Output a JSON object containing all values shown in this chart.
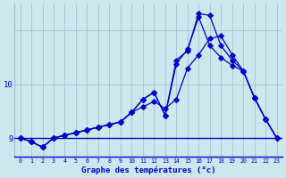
{
  "xlabel": "Graphe des températures (°c)",
  "bg_color": "#cce8ee",
  "line_color": "#0000cc",
  "grid_color": "#99bbcc",
  "xlim": [
    -0.5,
    23.5
  ],
  "ylim": [
    8.65,
    11.5
  ],
  "yticks": [
    9,
    10,
    11
  ],
  "ytick_labels": [
    "9",
    "10",
    ""
  ],
  "xticks": [
    0,
    1,
    2,
    3,
    4,
    5,
    6,
    7,
    8,
    9,
    10,
    11,
    12,
    13,
    14,
    15,
    16,
    17,
    18,
    19,
    20,
    21,
    22,
    23
  ],
  "hours": [
    0,
    1,
    2,
    3,
    4,
    5,
    6,
    7,
    8,
    9,
    10,
    11,
    12,
    13,
    14,
    15,
    16,
    17,
    18,
    19,
    20,
    21,
    22,
    23
  ],
  "curve_smooth": [
    9.0,
    8.93,
    8.83,
    9.0,
    9.05,
    9.1,
    9.15,
    9.2,
    9.25,
    9.3,
    9.48,
    9.58,
    9.68,
    9.55,
    9.72,
    10.3,
    10.55,
    10.85,
    10.9,
    10.55,
    10.25,
    9.75,
    9.35,
    9.0
  ],
  "curve_spike1": [
    9.0,
    8.93,
    8.83,
    9.0,
    9.05,
    9.1,
    9.15,
    9.2,
    9.25,
    9.3,
    9.48,
    9.72,
    9.85,
    9.42,
    10.38,
    10.65,
    11.25,
    10.72,
    10.5,
    10.35,
    10.25,
    9.75,
    9.35,
    9.0
  ],
  "curve_spike2": [
    9.0,
    8.93,
    8.83,
    9.0,
    9.05,
    9.1,
    9.15,
    9.2,
    9.25,
    9.3,
    9.48,
    9.72,
    9.85,
    9.42,
    10.45,
    10.62,
    11.32,
    11.28,
    10.72,
    10.45,
    10.25,
    9.75,
    9.35,
    9.0
  ],
  "hline_y": 9.0
}
